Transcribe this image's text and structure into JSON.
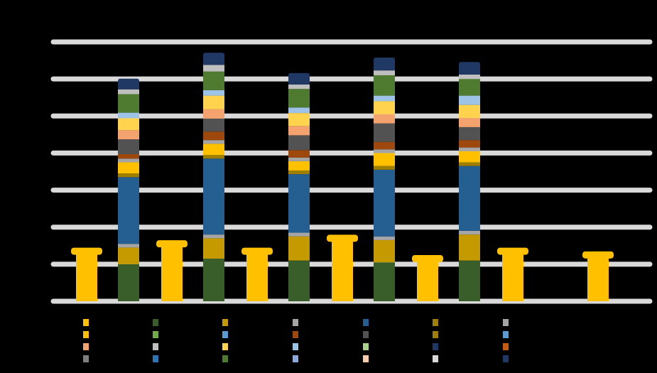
{
  "chart_data": {
    "type": "bar",
    "title": "",
    "xlabel": "",
    "ylabel": "",
    "ylim": [
      0,
      70
    ],
    "grid": true,
    "legend_placement": "bottom",
    "colors": {
      "background": "#000000",
      "gridline": "#d9d9d9",
      "axis_label": "#333333"
    },
    "x_tick_labels": [
      "",
      "",
      "",
      "",
      "",
      "",
      ""
    ],
    "groups": [
      {
        "left": {
          "value": 13.5,
          "color": "#FFC000"
        },
        "right": {
          "total_label": "",
          "segments": [
            {
              "value": 10.0,
              "color": "#3A5E2A"
            },
            {
              "value": 4.5,
              "color": "#C49A00"
            },
            {
              "value": 1.0,
              "color": "#A5A5A5"
            },
            {
              "value": 18.0,
              "color": "#255E91"
            },
            {
              "value": 1.0,
              "color": "#9E7F00"
            },
            {
              "value": 3.0,
              "color": "#FFC000"
            },
            {
              "value": 1.0,
              "color": "#A5A5A5"
            },
            {
              "value": 1.2,
              "color": "#9E480E"
            },
            {
              "value": 4.0,
              "color": "#525252"
            },
            {
              "value": 2.5,
              "color": "#F4A26E"
            },
            {
              "value": 3.2,
              "color": "#FFD34E"
            },
            {
              "value": 1.5,
              "color": "#9DC3E6"
            },
            {
              "value": 5.0,
              "color": "#4E7B2F"
            },
            {
              "value": 1.3,
              "color": "#BFBFBF"
            },
            {
              "value": 2.3,
              "color": "#203864"
            }
          ]
        }
      },
      {
        "left": {
          "value": 15.5,
          "color": "#FFC000"
        },
        "right": {
          "total_label": "",
          "segments": [
            {
              "value": 11.5,
              "color": "#3A5E2A"
            },
            {
              "value": 5.5,
              "color": "#C49A00"
            },
            {
              "value": 1.0,
              "color": "#A5A5A5"
            },
            {
              "value": 20.5,
              "color": "#255E91"
            },
            {
              "value": 1.0,
              "color": "#9E7F00"
            },
            {
              "value": 3.0,
              "color": "#FFC000"
            },
            {
              "value": 1.0,
              "color": "#A5A5A5"
            },
            {
              "value": 2.3,
              "color": "#9E480E"
            },
            {
              "value": 3.5,
              "color": "#525252"
            },
            {
              "value": 2.5,
              "color": "#F4A26E"
            },
            {
              "value": 3.7,
              "color": "#FFD34E"
            },
            {
              "value": 1.5,
              "color": "#9DC3E6"
            },
            {
              "value": 5.0,
              "color": "#4E7B2F"
            },
            {
              "value": 1.8,
              "color": "#BFBFBF"
            },
            {
              "value": 2.7,
              "color": "#203864"
            }
          ]
        }
      },
      {
        "left": {
          "value": 13.5,
          "color": "#FFC000"
        },
        "right": {
          "total_label": "",
          "segments": [
            {
              "value": 11.0,
              "color": "#3A5E2A"
            },
            {
              "value": 6.5,
              "color": "#C49A00"
            },
            {
              "value": 1.0,
              "color": "#A5A5A5"
            },
            {
              "value": 15.8,
              "color": "#255E91"
            },
            {
              "value": 1.0,
              "color": "#9E7F00"
            },
            {
              "value": 2.5,
              "color": "#FFC000"
            },
            {
              "value": 1.0,
              "color": "#A5A5A5"
            },
            {
              "value": 2.0,
              "color": "#9E480E"
            },
            {
              "value": 4.0,
              "color": "#525252"
            },
            {
              "value": 2.5,
              "color": "#F4A26E"
            },
            {
              "value": 3.5,
              "color": "#FFD34E"
            },
            {
              "value": 1.5,
              "color": "#9DC3E6"
            },
            {
              "value": 5.0,
              "color": "#4E7B2F"
            },
            {
              "value": 1.2,
              "color": "#BFBFBF"
            },
            {
              "value": 2.5,
              "color": "#203864"
            }
          ]
        }
      },
      {
        "left": {
          "value": 17.0,
          "color": "#FFC000"
        },
        "right": {
          "total_label": "",
          "segments": [
            {
              "value": 10.5,
              "color": "#3A5E2A"
            },
            {
              "value": 6.0,
              "color": "#C49A00"
            },
            {
              "value": 1.0,
              "color": "#A5A5A5"
            },
            {
              "value": 18.0,
              "color": "#255E91"
            },
            {
              "value": 1.0,
              "color": "#9E7F00"
            },
            {
              "value": 3.5,
              "color": "#FFC000"
            },
            {
              "value": 1.0,
              "color": "#A5A5A5"
            },
            {
              "value": 2.0,
              "color": "#9E480E"
            },
            {
              "value": 5.0,
              "color": "#525252"
            },
            {
              "value": 2.5,
              "color": "#F4A26E"
            },
            {
              "value": 3.5,
              "color": "#FFD34E"
            },
            {
              "value": 1.5,
              "color": "#9DC3E6"
            },
            {
              "value": 5.5,
              "color": "#4E7B2F"
            },
            {
              "value": 1.3,
              "color": "#BFBFBF"
            },
            {
              "value": 2.9,
              "color": "#203864"
            }
          ]
        }
      },
      {
        "left": {
          "value": 11.5,
          "color": "#FFC000"
        },
        "right": {
          "total_label": "",
          "segments": [
            {
              "value": 11.0,
              "color": "#3A5E2A"
            },
            {
              "value": 7.0,
              "color": "#C49A00"
            },
            {
              "value": 1.0,
              "color": "#A5A5A5"
            },
            {
              "value": 17.5,
              "color": "#255E91"
            },
            {
              "value": 1.0,
              "color": "#9E7F00"
            },
            {
              "value": 3.0,
              "color": "#FFC000"
            },
            {
              "value": 1.0,
              "color": "#A5A5A5"
            },
            {
              "value": 2.0,
              "color": "#9E480E"
            },
            {
              "value": 3.5,
              "color": "#525252"
            },
            {
              "value": 2.5,
              "color": "#F4A26E"
            },
            {
              "value": 3.5,
              "color": "#FFD34E"
            },
            {
              "value": 2.5,
              "color": "#9DC3E6"
            },
            {
              "value": 4.5,
              "color": "#4E7B2F"
            },
            {
              "value": 1.2,
              "color": "#BFBFBF"
            },
            {
              "value": 2.8,
              "color": "#203864"
            }
          ]
        }
      },
      {
        "left": {
          "value": 13.5,
          "color": "#FFC000"
        },
        "right": {
          "total_label": "",
          "segments": []
        }
      },
      {
        "left": {
          "value": 12.5,
          "color": "#FFC000"
        },
        "right": {
          "total_label": "",
          "segments": []
        }
      }
    ],
    "legend": [
      {
        "label": "",
        "color": "#FFC000"
      },
      {
        "label": "",
        "color": "#3A5E2A"
      },
      {
        "label": "",
        "color": "#C49A00"
      },
      {
        "label": "",
        "color": "#A5A5A5"
      },
      {
        "label": "",
        "color": "#255E91"
      },
      {
        "label": "",
        "color": "#9E7F00"
      },
      {
        "label": "",
        "color": "#A5A5A5"
      },
      {
        "label": "",
        "color": "#FFC000"
      },
      {
        "label": "",
        "color": "#70AD47"
      },
      {
        "label": "",
        "color": "#5B9BD5"
      },
      {
        "label": "",
        "color": "#9E480E"
      },
      {
        "label": "",
        "color": "#525252"
      },
      {
        "label": "",
        "color": "#9E7F00"
      },
      {
        "label": "",
        "color": "#5B9BD5"
      },
      {
        "label": "",
        "color": "#F4A26E"
      },
      {
        "label": "",
        "color": "#BFBFBF"
      },
      {
        "label": "",
        "color": "#FFD34E"
      },
      {
        "label": "",
        "color": "#9DC3E6"
      },
      {
        "label": "",
        "color": "#A9D18E"
      },
      {
        "label": "",
        "color": "#203864"
      },
      {
        "label": "",
        "color": "#C55A11"
      },
      {
        "label": "",
        "color": "#7F7F7F"
      },
      {
        "label": "",
        "color": "#2E75B6"
      },
      {
        "label": "",
        "color": "#4E7B2F"
      },
      {
        "label": "",
        "color": "#8EA9DB"
      },
      {
        "label": "",
        "color": "#F8CBAD"
      },
      {
        "label": "",
        "color": "#D9D9D9"
      },
      {
        "label": "",
        "color": "#203864"
      }
    ]
  }
}
